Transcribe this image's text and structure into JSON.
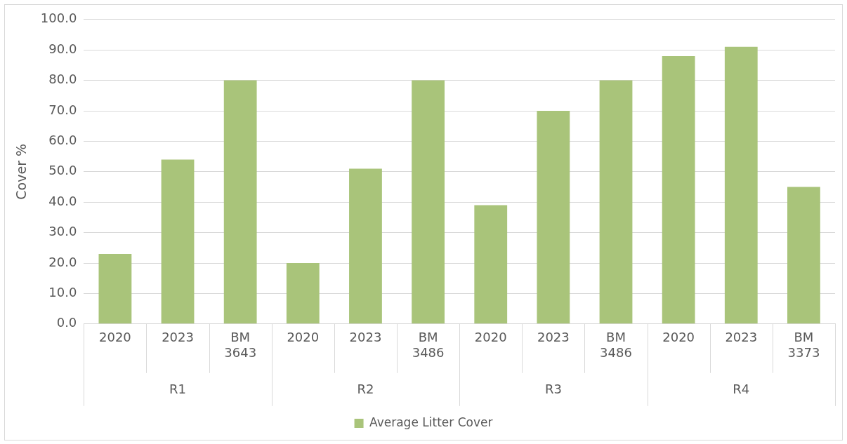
{
  "chart_data": {
    "type": "bar",
    "ylabel": "Cover %",
    "categories": [
      "2020",
      "2023",
      "BM 3643",
      "2020",
      "2023",
      "BM 3486",
      "2020",
      "2023",
      "BM 3486",
      "2020",
      "2023",
      "BM 3373"
    ],
    "series": [
      {
        "name": "Average Litter Cover",
        "color": "#a9c47a",
        "values": [
          23,
          54,
          80,
          20,
          51,
          80,
          39,
          70,
          80,
          88,
          91,
          45
        ]
      }
    ],
    "annotations": [
      "R1",
      "R2",
      "R3",
      "R4"
    ],
    "ylim": [
      0,
      100
    ],
    "yticks": [
      {
        "value": 0,
        "label": "0.0"
      },
      {
        "value": 10,
        "label": "10.0"
      },
      {
        "value": 20,
        "label": "20.0"
      },
      {
        "value": 30,
        "label": "30.0"
      },
      {
        "value": 40,
        "label": "40.0"
      },
      {
        "value": 50,
        "label": "50.0"
      },
      {
        "value": 60,
        "label": "60.0"
      },
      {
        "value": 70,
        "label": "70.0"
      },
      {
        "value": 80,
        "label": "80.0"
      },
      {
        "value": 90,
        "label": "90.0"
      },
      {
        "value": 100,
        "label": "100.0"
      }
    ],
    "grid": "y",
    "legend": "bottom"
  }
}
